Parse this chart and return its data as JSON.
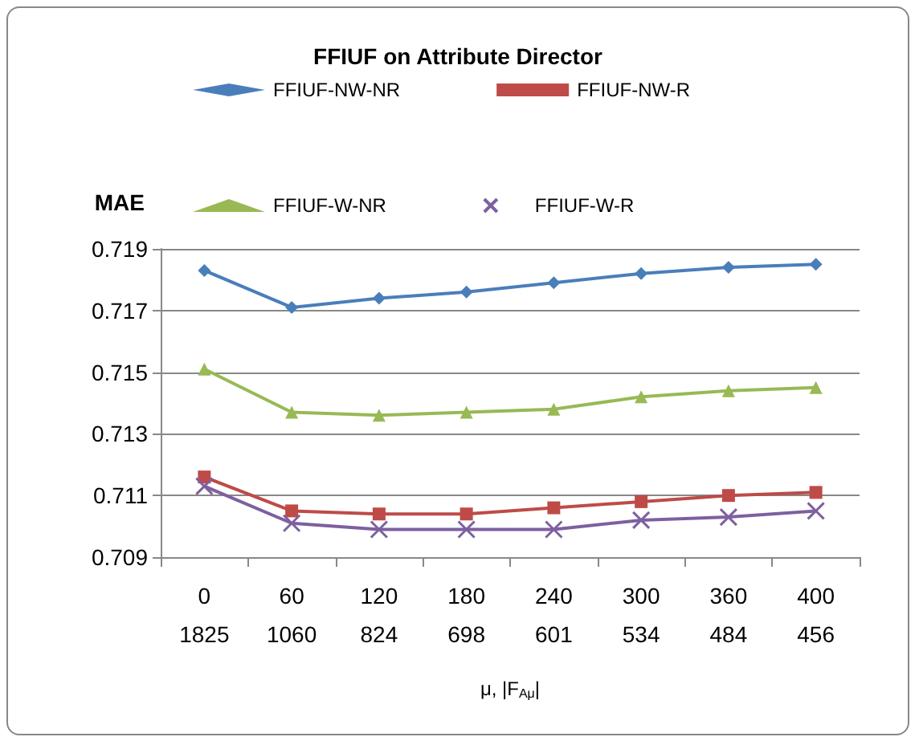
{
  "chart_data": {
    "type": "line",
    "title": "FFIUF on Attribute Director",
    "xlabel": "μ, |F$_{Aμ}$|",
    "ylabel": "MAE",
    "categories": [
      "0\n1825",
      "60\n1060",
      "120\n824",
      "180\n698",
      "240\n601",
      "300\n534",
      "360\n484",
      "400\n456"
    ],
    "series": [
      {
        "name": "FFIUF-NW-NR",
        "color": "#4a7ebb",
        "marker": "diamond",
        "values": [
          0.7183,
          0.7171,
          0.7174,
          0.7176,
          0.7179,
          0.7182,
          0.7184,
          0.7185
        ]
      },
      {
        "name": "FFIUF-NW-R",
        "color": "#be4b48",
        "marker": "square",
        "values": [
          0.7116,
          0.7105,
          0.7104,
          0.7104,
          0.7106,
          0.7108,
          0.711,
          0.7111
        ]
      },
      {
        "name": "FFIUF-W-NR",
        "color": "#98b954",
        "marker": "triangle",
        "values": [
          0.7151,
          0.7137,
          0.7136,
          0.7137,
          0.7138,
          0.7142,
          0.7144,
          0.7145
        ]
      },
      {
        "name": "FFIUF-W-R",
        "color": "#7d60a0",
        "marker": "cross",
        "values": [
          0.7113,
          0.7101,
          0.7099,
          0.7099,
          0.7099,
          0.7102,
          0.7103,
          0.7105
        ]
      }
    ],
    "ylim": [
      0.709,
      0.719
    ],
    "yticks": [
      0.709,
      0.711,
      0.713,
      0.715,
      0.717,
      0.719
    ],
    "grid": "y",
    "legend": "top",
    "line_style": "solid"
  }
}
